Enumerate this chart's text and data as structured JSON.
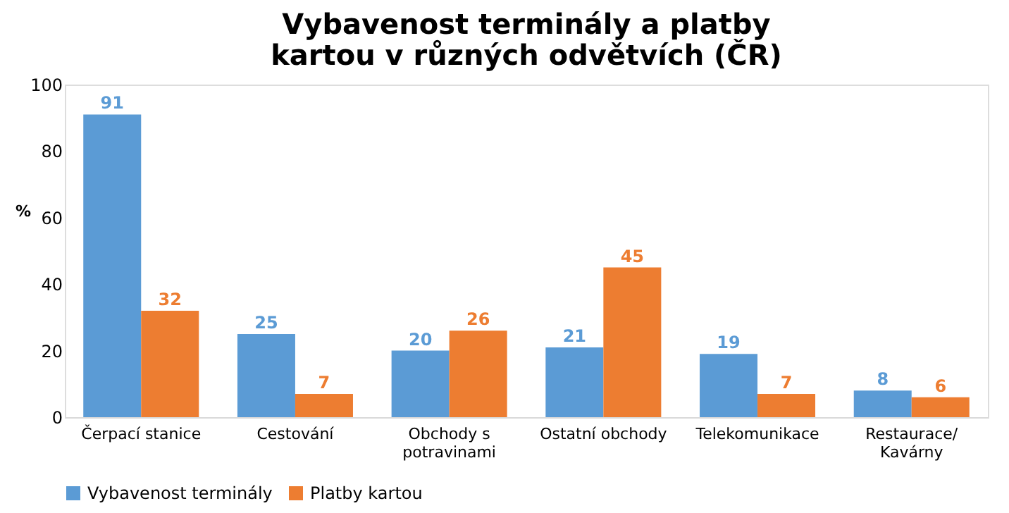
{
  "chart_data": {
    "type": "bar",
    "title": "Vybavenost terminály a platby kartou v různých odvětvích (ČR)",
    "ylabel": "%",
    "categories": [
      "Čerpací stanice",
      "Cestování",
      "Obchody s potravinami",
      "Ostatní obchody",
      "Telekomunikace",
      "Restaurace/ Kavárny"
    ],
    "series": [
      {
        "name": "Vybavenost terminály",
        "color": "#5b9bd5",
        "values": [
          91,
          25,
          20,
          21,
          19,
          8
        ]
      },
      {
        "name": "Platby kartou",
        "color": "#ed7d31",
        "values": [
          32,
          7,
          26,
          45,
          7,
          6
        ]
      }
    ],
    "ylim": [
      0,
      100
    ],
    "yticks": [
      0,
      20,
      40,
      60,
      80,
      100
    ],
    "grid": false,
    "legend": "bottom",
    "data_labels": true
  }
}
